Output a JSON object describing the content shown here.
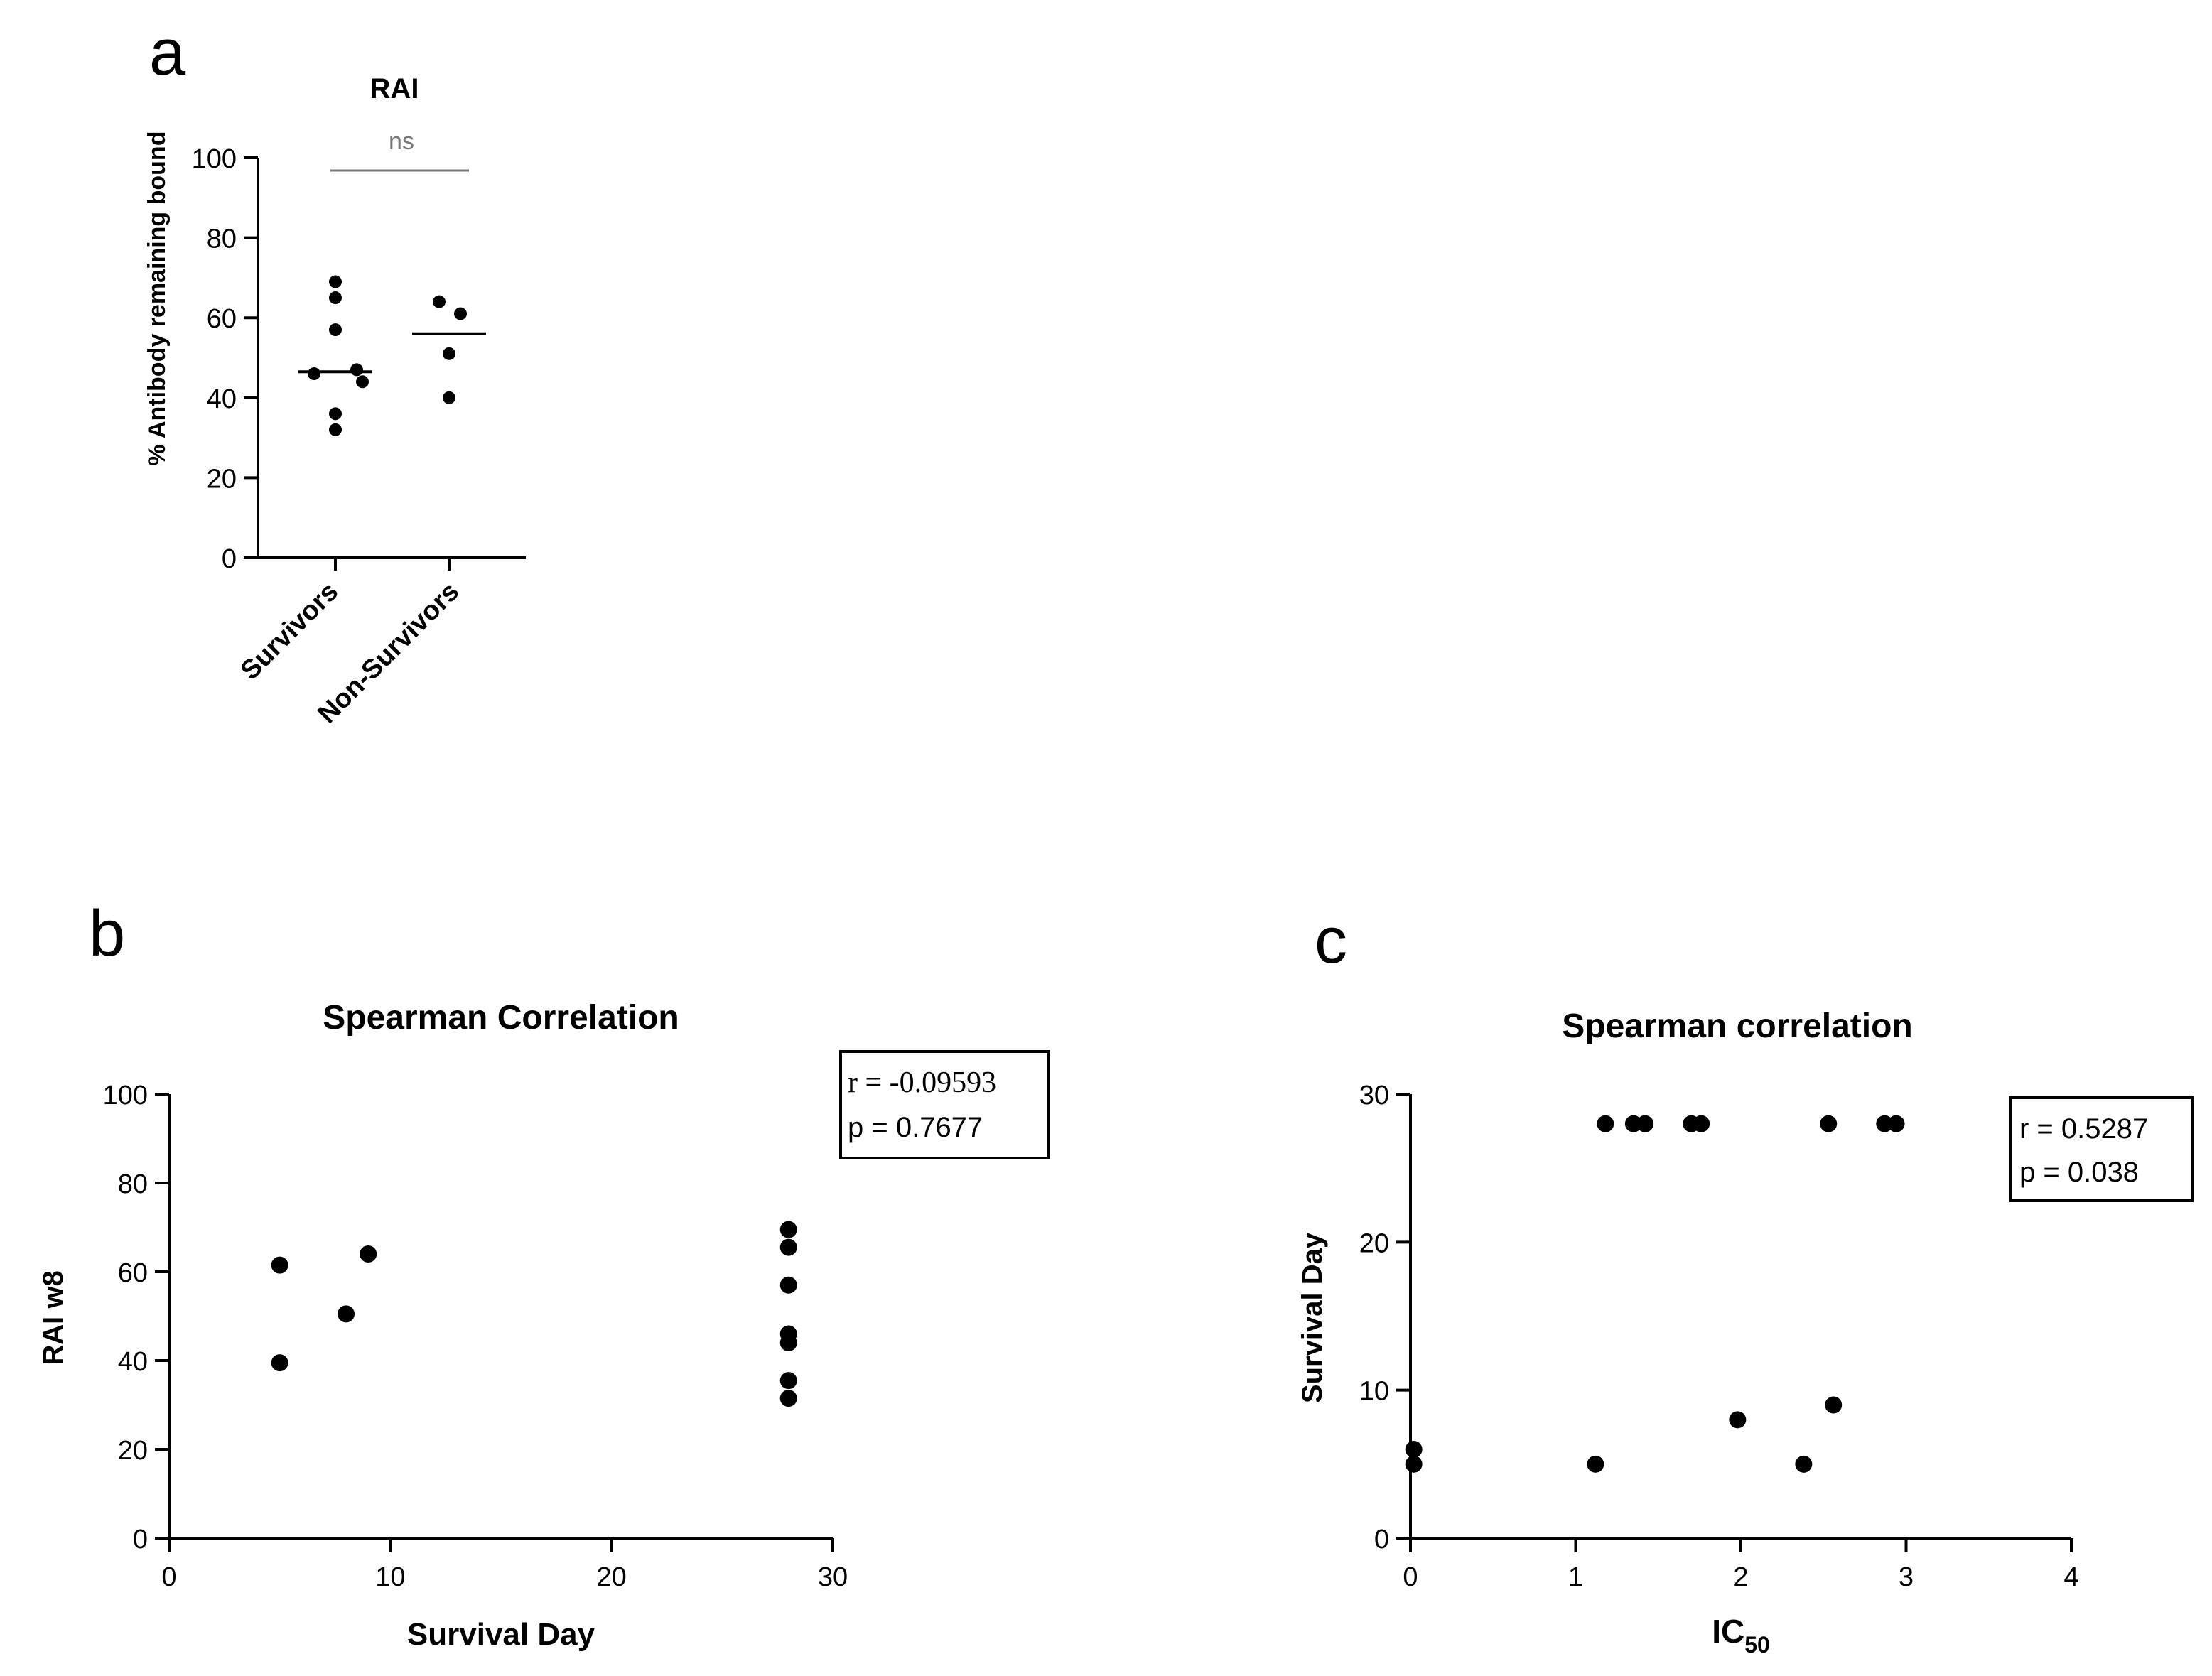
{
  "chart_data": [
    {
      "panel": "a",
      "type": "scatter",
      "title": "RAI",
      "xlabel": "",
      "ylabel": "% Antibody remaining bound",
      "categories": [
        "Survivors",
        "Non-Survivors"
      ],
      "ylim": [
        0,
        100
      ],
      "yticks": [
        "0",
        "20",
        "40",
        "60",
        "80",
        "100"
      ],
      "yticks_values": [
        0,
        20,
        40,
        60,
        80,
        100
      ],
      "series": [
        {
          "name": "Survivors",
          "values": [
            69,
            65,
            57,
            47,
            46,
            44,
            36,
            32
          ],
          "median": 46.5
        },
        {
          "name": "Non-Survivors",
          "values": [
            64,
            61,
            51,
            40
          ],
          "median": 56
        }
      ],
      "significance": "ns"
    },
    {
      "panel": "b",
      "type": "scatter",
      "title": "Spearman Correlation",
      "xlabel": "Survival Day",
      "ylabel": "RAI w8",
      "xlim": [
        0,
        30
      ],
      "ylim": [
        0,
        100
      ],
      "xticks": [
        "0",
        "10",
        "20",
        "30"
      ],
      "xticks_values": [
        0,
        10,
        20,
        30
      ],
      "yticks": [
        "0",
        "20",
        "40",
        "60",
        "80",
        "100"
      ],
      "yticks_values": [
        0,
        20,
        40,
        60,
        80,
        100
      ],
      "points": [
        [
          5,
          61.5
        ],
        [
          5,
          39.5
        ],
        [
          8,
          50.5
        ],
        [
          9,
          64
        ],
        [
          28,
          69.5
        ],
        [
          28,
          65.5
        ],
        [
          28,
          57
        ],
        [
          28,
          46
        ],
        [
          28,
          44
        ],
        [
          28,
          35.5
        ],
        [
          28,
          31.5
        ]
      ],
      "stats": {
        "r": "r = -0.09593",
        "p": "p = 0.7677"
      }
    },
    {
      "panel": "c",
      "type": "scatter",
      "title": "Spearman correlation",
      "xlabel": "IC",
      "xlabel_sub": "50",
      "ylabel": "Survival Day",
      "xlim": [
        0,
        4
      ],
      "ylim": [
        0,
        30
      ],
      "xticks": [
        "0",
        "1",
        "2",
        "3",
        "4"
      ],
      "xticks_values": [
        0,
        1,
        2,
        3,
        4
      ],
      "yticks": [
        "0",
        "10",
        "20",
        "30"
      ],
      "yticks_values": [
        0,
        10,
        20,
        30
      ],
      "points": [
        [
          0.02,
          6
        ],
        [
          0.02,
          5
        ],
        [
          1.12,
          5
        ],
        [
          1.18,
          28
        ],
        [
          1.35,
          28
        ],
        [
          1.42,
          28
        ],
        [
          1.7,
          28
        ],
        [
          1.76,
          28
        ],
        [
          1.98,
          8
        ],
        [
          2.38,
          5
        ],
        [
          2.53,
          28
        ],
        [
          2.56,
          9
        ],
        [
          2.87,
          28
        ],
        [
          2.94,
          28
        ]
      ],
      "stats": {
        "r": "r = 0.5287",
        "p": "p = 0.038"
      }
    }
  ],
  "panel_letters": [
    "a",
    "b",
    "c"
  ],
  "colors": {
    "ink": "#000000",
    "sig_gray": "#777777",
    "bg": "#ffffff"
  }
}
